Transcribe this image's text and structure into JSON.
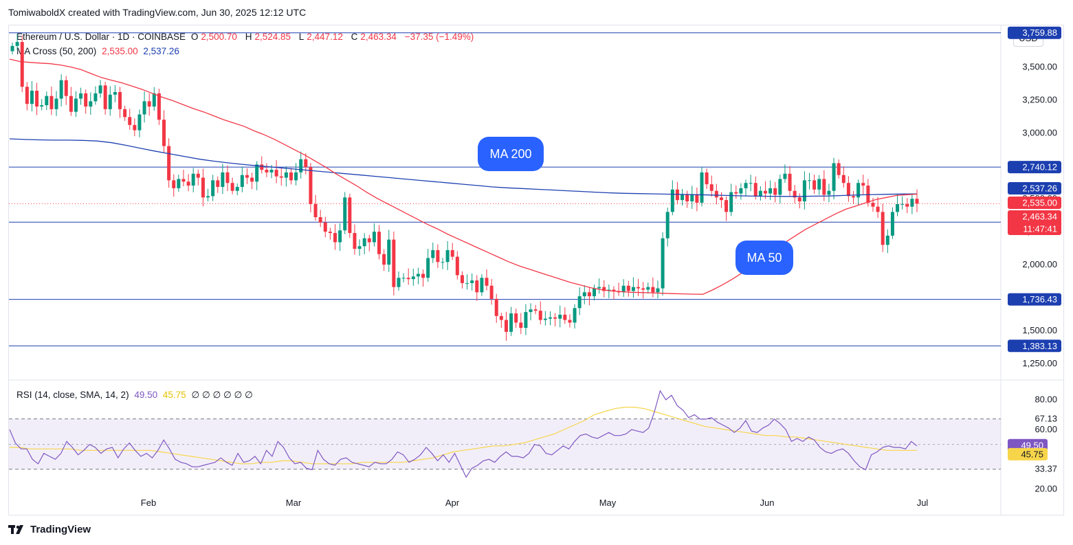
{
  "header": {
    "attribution": "TomiwaboldX created with TradingView.com, Jun 30, 2025 12:12 UTC"
  },
  "legend": {
    "symbol": "Ethereum / U.S. Dollar · 1D · COINBASE",
    "o_label": "O",
    "o_value": "2,500.70",
    "h_label": "H",
    "h_value": "2,524.85",
    "l_label": "L",
    "l_value": "2,447.12",
    "c_label": "C",
    "c_value": "2,463.34",
    "change": "−37.35 (−1.49%)",
    "ma_label": "MA Cross (50, 200)",
    "ma50_value": "2,535.00",
    "ma200_value": "2,537.26",
    "rsi_label": "RSI (14, close, SMA, 14, 2)",
    "rsi_value": "49.50",
    "rsi_sma_value": "45.75",
    "rsi_extra": "∅ ∅ ∅ ∅ ∅ ∅"
  },
  "currency_button": "USD",
  "brand": "TradingView",
  "colors": {
    "up": "#089981",
    "down": "#f23645",
    "ma50": "#f23645",
    "ma200": "#1c3fb0",
    "rsi": "#7e57c2",
    "rsi_sma": "#f7d54a",
    "hline": "#1c3fb0",
    "badge": "#2962ff"
  },
  "chart_data": [
    {
      "type": "candlestick",
      "title": "Ethereum / U.S. Dollar · 1D · COINBASE",
      "ylim": [
        1150,
        3800
      ],
      "y_ticks": [
        "1,250.00",
        "1,500.00",
        "2,000.00",
        "2,250.00",
        "2,500.00",
        "2,750.00",
        "3,000.00",
        "3,250.00",
        "3,500.00"
      ],
      "x_labels": [
        "Feb",
        "Mar",
        "Apr",
        "May",
        "Jun",
        "Jul"
      ],
      "horizontal_levels": [
        "3,759.88",
        "2,740.12",
        "2,322.59",
        "1,736.43",
        "1,383.13"
      ],
      "current_price": "2,463.34",
      "countdown": "11:47:41",
      "price_labels": {
        "ma200": "2,537.26",
        "ma50": "2,535.00"
      },
      "annotations": [
        "MA 200",
        "MA 50"
      ],
      "closes": [
        3660,
        3690,
        3350,
        3220,
        3320,
        3200,
        3210,
        3280,
        3180,
        3260,
        3400,
        3280,
        3160,
        3260,
        3300,
        3200,
        3240,
        3300,
        3360,
        3180,
        3290,
        3310,
        3180,
        3120,
        3060,
        3020,
        3140,
        3240,
        3200,
        3300,
        3100,
        2900,
        2640,
        2580,
        2650,
        2630,
        2600,
        2690,
        2660,
        2510,
        2520,
        2640,
        2590,
        2700,
        2620,
        2560,
        2590,
        2680,
        2660,
        2630,
        2760,
        2720,
        2700,
        2720,
        2670,
        2660,
        2700,
        2640,
        2700,
        2800,
        2740,
        2460,
        2360,
        2320,
        2250,
        2240,
        2170,
        2260,
        2510,
        2240,
        2120,
        2140,
        2200,
        2170,
        2250,
        2080,
        2000,
        2190,
        1830,
        1900,
        1900,
        1890,
        1910,
        1930,
        1900,
        2050,
        2110,
        2020,
        2020,
        2110,
        2060,
        1920,
        1860,
        1860,
        1880,
        1790,
        1900,
        1840,
        1740,
        1610,
        1580,
        1490,
        1630,
        1560,
        1520,
        1640,
        1660,
        1650,
        1580,
        1590,
        1600,
        1590,
        1620,
        1580,
        1560,
        1670,
        1760,
        1790,
        1760,
        1820,
        1830,
        1800,
        1810,
        1800,
        1790,
        1840,
        1800,
        1830,
        1820,
        1810,
        1830,
        1790,
        1820,
        2200,
        2400,
        2570,
        2490,
        2530,
        2480,
        2530,
        2470,
        2700,
        2610,
        2560,
        2510,
        2490,
        2400,
        2550,
        2540,
        2580,
        2620,
        2620,
        2520,
        2560,
        2540,
        2580,
        2530,
        2650,
        2690,
        2560,
        2510,
        2480,
        2640,
        2640,
        2570,
        2650,
        2530,
        2560,
        2770,
        2680,
        2620,
        2520,
        2510,
        2620,
        2600,
        2470,
        2440,
        2400,
        2150,
        2220,
        2400,
        2460,
        2460,
        2440,
        2500,
        2463
      ],
      "ma50": [
        3560,
        3542,
        3535,
        3530,
        3525,
        3515,
        3500,
        3480,
        3450,
        3420,
        3400,
        3380,
        3355,
        3330,
        3300,
        3270,
        3245,
        3215,
        3185,
        3160,
        3130,
        3100,
        3075,
        3050,
        3015,
        2985,
        2950,
        2910,
        2870,
        2830,
        2785,
        2740,
        2690,
        2645,
        2600,
        2550,
        2505,
        2465,
        2425,
        2385,
        2345,
        2305,
        2270,
        2230,
        2195,
        2160,
        2125,
        2090,
        2055,
        2020,
        1990,
        1965,
        1940,
        1915,
        1890,
        1865,
        1845,
        1825,
        1810,
        1800,
        1795,
        1790,
        1788,
        1786,
        1783,
        1780,
        1778,
        1776,
        1775,
        1810,
        1850,
        1895,
        1945,
        1995,
        2050,
        2110,
        2165,
        2215,
        2265,
        2305,
        2345,
        2385,
        2420,
        2445,
        2470,
        2495,
        2510,
        2525,
        2531,
        2535
      ],
      "ma200": [
        2955,
        2950,
        2947,
        2945,
        2945,
        2943,
        2938,
        2925,
        2905,
        2882,
        2860,
        2840,
        2820,
        2800,
        2785,
        2772,
        2760,
        2750,
        2740,
        2730,
        2720,
        2710,
        2700,
        2690,
        2680,
        2670,
        2660,
        2650,
        2640,
        2630,
        2620,
        2610,
        2600,
        2590,
        2583,
        2578,
        2572,
        2567,
        2561,
        2556,
        2550,
        2545,
        2541,
        2539,
        2537,
        2535,
        2533,
        2531,
        2528,
        2525,
        2522,
        2520,
        2519,
        2518,
        2518,
        2520,
        2521,
        2525,
        2529,
        2532,
        2534,
        2536,
        2537
      ]
    },
    {
      "type": "line",
      "title": "RSI (14, close, SMA, 14, 2)",
      "ylim": [
        18,
        90
      ],
      "y_ticks": [
        "80.00",
        "60.00",
        "20.00"
      ],
      "levels": [
        "67.13",
        "33.37"
      ],
      "price_labels": {
        "rsi": "49.50",
        "rsi_sma": "45.75"
      },
      "series": [
        {
          "name": "RSI",
          "values": [
            60,
            51,
            47,
            47,
            40,
            37,
            44,
            42,
            40,
            44,
            52,
            48,
            43,
            46,
            50,
            48,
            44,
            47,
            48,
            41,
            47,
            51,
            46,
            42,
            44,
            41,
            46,
            53,
            47,
            40,
            38,
            37,
            35,
            35,
            36,
            37,
            38,
            41,
            38,
            36,
            44,
            38,
            39,
            42,
            37,
            46,
            42,
            52,
            48,
            41,
            37,
            38,
            34,
            33,
            46,
            40,
            37,
            36,
            40,
            41,
            38,
            37,
            36,
            35,
            38,
            37,
            37,
            40,
            45,
            43,
            38,
            40,
            43,
            48,
            44,
            39,
            43,
            38,
            44,
            36,
            28,
            34,
            36,
            39,
            40,
            38,
            42,
            45,
            42,
            42,
            41,
            44,
            50,
            49,
            44,
            43,
            46,
            49,
            47,
            52,
            56,
            57,
            55,
            54,
            56,
            58,
            56,
            56,
            57,
            60,
            59,
            58,
            61,
            72,
            86,
            80,
            83,
            76,
            73,
            68,
            70,
            67,
            67,
            68,
            65,
            63,
            61,
            58,
            61,
            66,
            59,
            58,
            61,
            63,
            67,
            64,
            60,
            52,
            54,
            52,
            55,
            53,
            48,
            45,
            44,
            46,
            47,
            44,
            39,
            35,
            33,
            43,
            45,
            48,
            49,
            48,
            48,
            47,
            52,
            49
          ],
          "values_note": ""
        },
        {
          "name": "RSI SMA",
          "values": [
            48,
            48,
            47,
            47,
            47,
            47,
            47,
            46,
            46,
            46,
            46,
            46,
            46,
            46,
            46,
            45,
            44,
            43,
            42,
            41,
            40,
            39,
            38,
            37,
            37,
            38,
            38,
            39,
            39,
            38,
            37,
            37,
            37,
            37,
            37,
            38,
            38,
            38,
            38,
            38,
            39,
            40,
            41,
            43,
            45,
            46,
            47,
            48,
            49,
            49,
            50,
            51,
            53,
            55,
            57,
            60,
            63,
            66,
            70,
            72,
            74,
            75,
            75,
            74,
            72,
            70,
            68,
            66,
            64,
            62,
            61,
            60,
            59,
            58,
            57,
            56,
            56,
            55,
            55,
            54,
            53,
            52,
            51,
            50,
            49,
            48,
            47,
            46,
            46,
            46,
            46
          ]
        }
      ]
    }
  ]
}
